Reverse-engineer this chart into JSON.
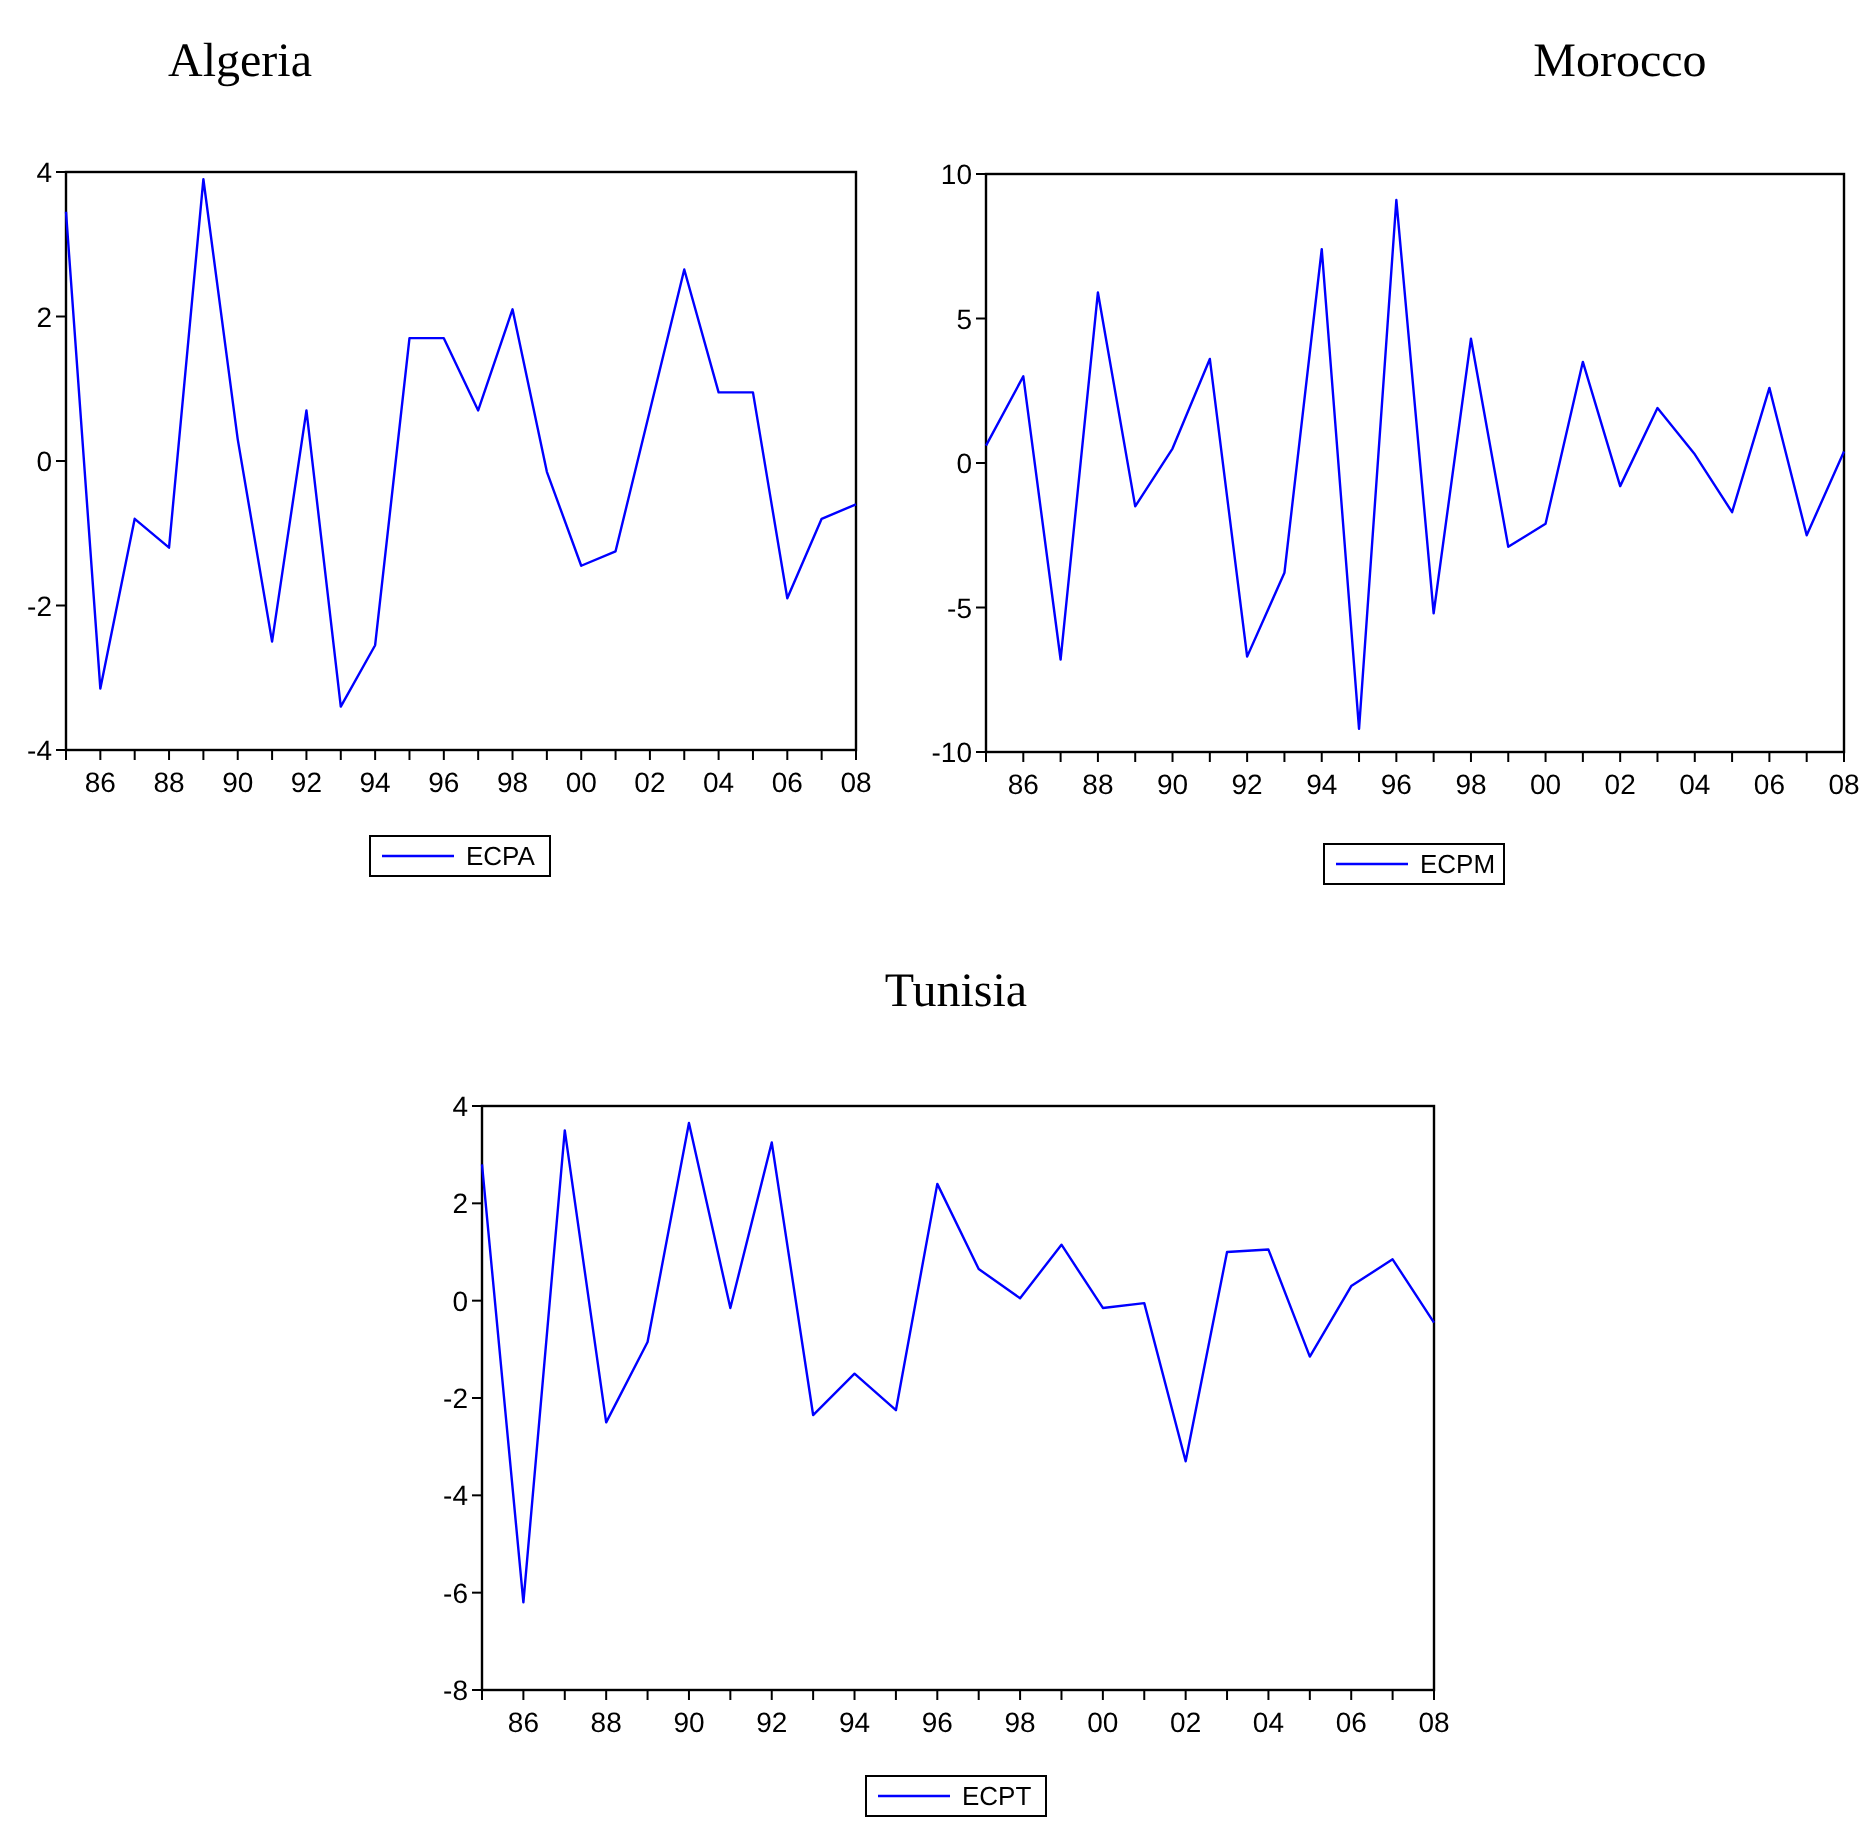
{
  "chart_data": [
    {
      "type": "line",
      "title": "Algeria",
      "x": [
        1985,
        1986,
        1987,
        1988,
        1989,
        1990,
        1991,
        1992,
        1993,
        1994,
        1995,
        1996,
        1997,
        1998,
        1999,
        2000,
        2001,
        2002,
        2003,
        2004,
        2005,
        2006,
        2007,
        2008
      ],
      "series": [
        {
          "name": "ECPA",
          "color": "#0000ff",
          "values": [
            3.45,
            -3.15,
            -0.8,
            -1.2,
            3.9,
            0.3,
            -2.5,
            0.7,
            -3.4,
            -2.55,
            1.7,
            1.7,
            0.7,
            2.1,
            -0.15,
            -1.45,
            -1.25,
            0.7,
            2.65,
            0.95,
            0.95,
            -1.9,
            -0.8,
            -0.6
          ]
        }
      ],
      "xlim": [
        1985,
        2008
      ],
      "xticks": [
        {
          "value": 1985,
          "label": null
        },
        {
          "value": 1986,
          "label": "86"
        },
        {
          "value": 1987,
          "label": null
        },
        {
          "value": 1988,
          "label": "88"
        },
        {
          "value": 1989,
          "label": null
        },
        {
          "value": 1990,
          "label": "90"
        },
        {
          "value": 1991,
          "label": null
        },
        {
          "value": 1992,
          "label": "92"
        },
        {
          "value": 1993,
          "label": null
        },
        {
          "value": 1994,
          "label": "94"
        },
        {
          "value": 1995,
          "label": null
        },
        {
          "value": 1996,
          "label": "96"
        },
        {
          "value": 1997,
          "label": null
        },
        {
          "value": 1998,
          "label": "98"
        },
        {
          "value": 1999,
          "label": null
        },
        {
          "value": 2000,
          "label": "00"
        },
        {
          "value": 2001,
          "label": null
        },
        {
          "value": 2002,
          "label": "02"
        },
        {
          "value": 2003,
          "label": null
        },
        {
          "value": 2004,
          "label": "04"
        },
        {
          "value": 2005,
          "label": null
        },
        {
          "value": 2006,
          "label": "06"
        },
        {
          "value": 2007,
          "label": null
        },
        {
          "value": 2008,
          "label": "08"
        }
      ],
      "ylim": [
        -4,
        4
      ],
      "yticks": [
        -4,
        -2,
        0,
        2,
        4
      ],
      "grid": false,
      "legend": "bottom",
      "marker": "none",
      "line_style": "solid"
    },
    {
      "type": "line",
      "title": "Morocco",
      "x": [
        1985,
        1986,
        1987,
        1988,
        1989,
        1990,
        1991,
        1992,
        1993,
        1994,
        1995,
        1996,
        1997,
        1998,
        1999,
        2000,
        2001,
        2002,
        2003,
        2004,
        2005,
        2006,
        2007,
        2008
      ],
      "series": [
        {
          "name": "ECPM",
          "color": "#0000ff",
          "values": [
            0.6,
            3.0,
            -6.8,
            5.9,
            -1.5,
            0.5,
            3.6,
            -6.7,
            -3.8,
            7.4,
            -9.2,
            9.1,
            -5.2,
            4.3,
            -2.9,
            -2.1,
            3.5,
            -0.8,
            1.9,
            0.3,
            -1.7,
            2.6,
            -2.5,
            0.4
          ]
        }
      ],
      "xlim": [
        1985,
        2008
      ],
      "xticks": [
        {
          "value": 1985,
          "label": null
        },
        {
          "value": 1986,
          "label": "86"
        },
        {
          "value": 1987,
          "label": null
        },
        {
          "value": 1988,
          "label": "88"
        },
        {
          "value": 1989,
          "label": null
        },
        {
          "value": 1990,
          "label": "90"
        },
        {
          "value": 1991,
          "label": null
        },
        {
          "value": 1992,
          "label": "92"
        },
        {
          "value": 1993,
          "label": null
        },
        {
          "value": 1994,
          "label": "94"
        },
        {
          "value": 1995,
          "label": null
        },
        {
          "value": 1996,
          "label": "96"
        },
        {
          "value": 1997,
          "label": null
        },
        {
          "value": 1998,
          "label": "98"
        },
        {
          "value": 1999,
          "label": null
        },
        {
          "value": 2000,
          "label": "00"
        },
        {
          "value": 2001,
          "label": null
        },
        {
          "value": 2002,
          "label": "02"
        },
        {
          "value": 2003,
          "label": null
        },
        {
          "value": 2004,
          "label": "04"
        },
        {
          "value": 2005,
          "label": null
        },
        {
          "value": 2006,
          "label": "06"
        },
        {
          "value": 2007,
          "label": null
        },
        {
          "value": 2008,
          "label": "08"
        }
      ],
      "ylim": [
        -10,
        10
      ],
      "yticks": [
        -10,
        -5,
        0,
        5,
        10
      ],
      "grid": false,
      "legend": "bottom",
      "marker": "none",
      "line_style": "solid"
    },
    {
      "type": "line",
      "title": "Tunisia",
      "x": [
        1985,
        1986,
        1987,
        1988,
        1989,
        1990,
        1991,
        1992,
        1993,
        1994,
        1995,
        1996,
        1997,
        1998,
        1999,
        2000,
        2001,
        2002,
        2003,
        2004,
        2005,
        2006,
        2007,
        2008
      ],
      "series": [
        {
          "name": "ECPT",
          "color": "#0000ff",
          "values": [
            2.8,
            -6.2,
            3.5,
            -2.5,
            -0.85,
            3.65,
            -0.15,
            3.25,
            -2.35,
            -1.5,
            -2.25,
            2.4,
            0.65,
            0.05,
            1.15,
            -0.15,
            -0.05,
            -3.3,
            1.0,
            1.05,
            -1.15,
            0.3,
            0.85,
            -0.45
          ]
        }
      ],
      "xlim": [
        1985,
        2008
      ],
      "xticks": [
        {
          "value": 1985,
          "label": null
        },
        {
          "value": 1986,
          "label": "86"
        },
        {
          "value": 1987,
          "label": null
        },
        {
          "value": 1988,
          "label": "88"
        },
        {
          "value": 1989,
          "label": null
        },
        {
          "value": 1990,
          "label": "90"
        },
        {
          "value": 1991,
          "label": null
        },
        {
          "value": 1992,
          "label": "92"
        },
        {
          "value": 1993,
          "label": null
        },
        {
          "value": 1994,
          "label": "94"
        },
        {
          "value": 1995,
          "label": null
        },
        {
          "value": 1996,
          "label": "96"
        },
        {
          "value": 1997,
          "label": null
        },
        {
          "value": 1998,
          "label": "98"
        },
        {
          "value": 1999,
          "label": null
        },
        {
          "value": 2000,
          "label": "00"
        },
        {
          "value": 2001,
          "label": null
        },
        {
          "value": 2002,
          "label": "02"
        },
        {
          "value": 2003,
          "label": null
        },
        {
          "value": 2004,
          "label": "04"
        },
        {
          "value": 2005,
          "label": null
        },
        {
          "value": 2006,
          "label": "06"
        },
        {
          "value": 2007,
          "label": null
        },
        {
          "value": 2008,
          "label": "08"
        }
      ],
      "ylim": [
        -8,
        4
      ],
      "yticks": [
        -8,
        -6,
        -4,
        -2,
        0,
        2,
        4
      ],
      "grid": false,
      "legend": "bottom",
      "marker": "none",
      "line_style": "solid"
    }
  ]
}
